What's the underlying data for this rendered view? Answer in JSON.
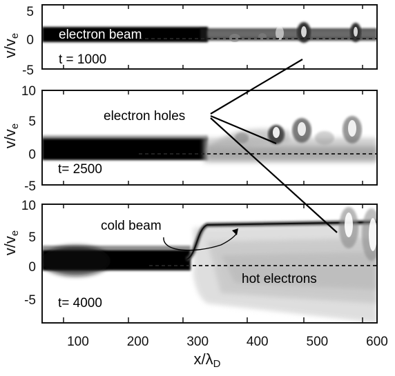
{
  "chart_data": [
    {
      "type": "heatmap",
      "panel": "top",
      "xlim": [
        40,
        600
      ],
      "ylim": [
        -5,
        5
      ],
      "yticks": [
        "5",
        "0",
        "-5"
      ],
      "ylabel": "v/v",
      "ylabel_sub": "e",
      "time_label": "t = 1000",
      "annotations": [
        "electron beam"
      ],
      "reference_line_y": 0
    },
    {
      "type": "heatmap",
      "panel": "middle",
      "xlim": [
        40,
        600
      ],
      "ylim": [
        -5,
        10
      ],
      "yticks": [
        "10",
        "5",
        "0",
        "-5"
      ],
      "ylabel": "v/v",
      "ylabel_sub": "e",
      "time_label": "t= 2500",
      "annotations": [
        "electron holes"
      ],
      "reference_line_y": 0
    },
    {
      "type": "heatmap",
      "panel": "bottom",
      "xlim": [
        40,
        600
      ],
      "ylim": [
        -9,
        10
      ],
      "yticks": [
        "10",
        "5",
        "0",
        "-5"
      ],
      "xticks": [
        "100",
        "200",
        "300",
        "400",
        "500",
        "600"
      ],
      "xtick_values": [
        100,
        200,
        300,
        400,
        500,
        600
      ],
      "xlabel": "x/λ",
      "xlabel_sub": "D",
      "ylabel": "v/v",
      "ylabel_sub": "e",
      "time_label": "t= 4000",
      "annotations": [
        "cold beam",
        "hot electrons"
      ],
      "reference_line_y": 0
    }
  ],
  "colors": {
    "beam": "#111111",
    "frame": "#111111",
    "background": "#ffffff",
    "hot_electrons": "#c8c8c8"
  }
}
